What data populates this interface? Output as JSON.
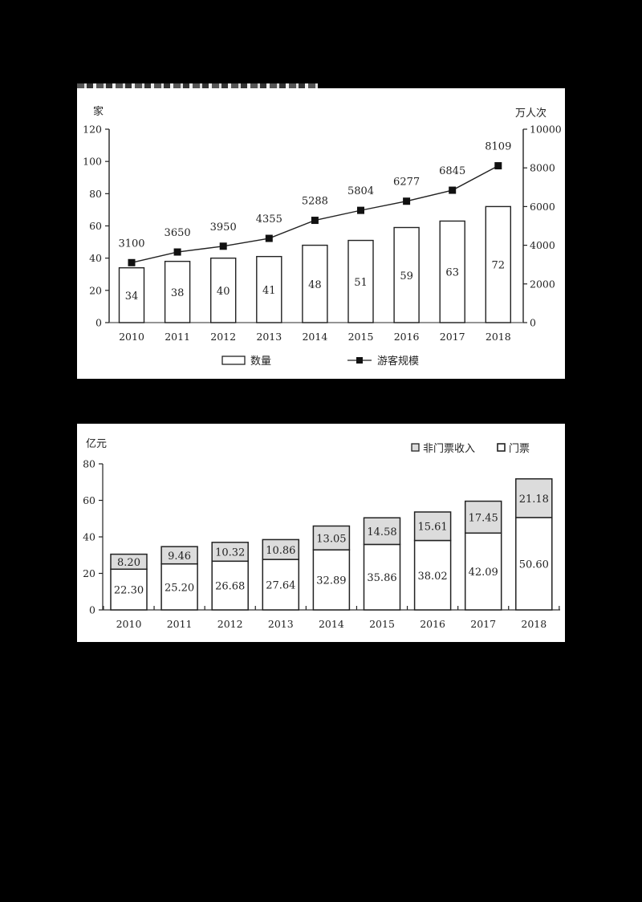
{
  "chart_data": [
    {
      "type": "bar+line",
      "title": "",
      "categories": [
        "2010",
        "2011",
        "2012",
        "2013",
        "2014",
        "2015",
        "2016",
        "2017",
        "2018"
      ],
      "series": [
        {
          "name": "数量",
          "type": "bar",
          "axis": "left",
          "values": [
            34,
            38,
            40,
            41,
            48,
            51,
            59,
            63,
            72
          ]
        },
        {
          "name": "游客规模",
          "type": "line",
          "axis": "right",
          "marker": "square",
          "values": [
            3100,
            3650,
            3950,
            4355,
            5288,
            5804,
            6277,
            6845,
            8109
          ]
        }
      ],
      "ylabel_left": "家",
      "ylabel_right": "万人次",
      "ylim_left": [
        0,
        120
      ],
      "yticks_left": [
        0,
        20,
        40,
        60,
        80,
        100,
        120
      ],
      "ylim_right": [
        0,
        10000
      ],
      "yticks_right": [
        0,
        2000,
        4000,
        6000,
        8000,
        10000
      ],
      "legend": [
        "数量",
        "游客规模"
      ],
      "legend_position": "bottom",
      "grid": false
    },
    {
      "type": "stacked_bar",
      "title": "",
      "categories": [
        "2010",
        "2011",
        "2012",
        "2013",
        "2014",
        "2015",
        "2016",
        "2017",
        "2018"
      ],
      "series": [
        {
          "name": "门票",
          "color": "#ffffff",
          "values": [
            22.3,
            25.2,
            26.68,
            27.64,
            32.89,
            35.86,
            38.02,
            42.09,
            50.6
          ]
        },
        {
          "name": "非门票收入",
          "color": "#dcdcdc",
          "values": [
            8.2,
            9.46,
            10.32,
            10.86,
            13.05,
            14.58,
            15.61,
            17.45,
            21.18
          ]
        }
      ],
      "ylabel": "亿元",
      "ylim": [
        0,
        80
      ],
      "yticks": [
        0,
        20,
        40,
        60,
        80
      ],
      "legend": [
        "非门票收入",
        "门票"
      ],
      "legend_position": "top-right",
      "grid": false
    }
  ],
  "chart1": {
    "ylabel_left": "家",
    "ylabel_right": "万人次",
    "legend_bar": "数量",
    "legend_line": "游客规模"
  },
  "chart2": {
    "ylabel": "亿元",
    "legend_nonticket": "非门票收入",
    "legend_ticket": "门票"
  }
}
